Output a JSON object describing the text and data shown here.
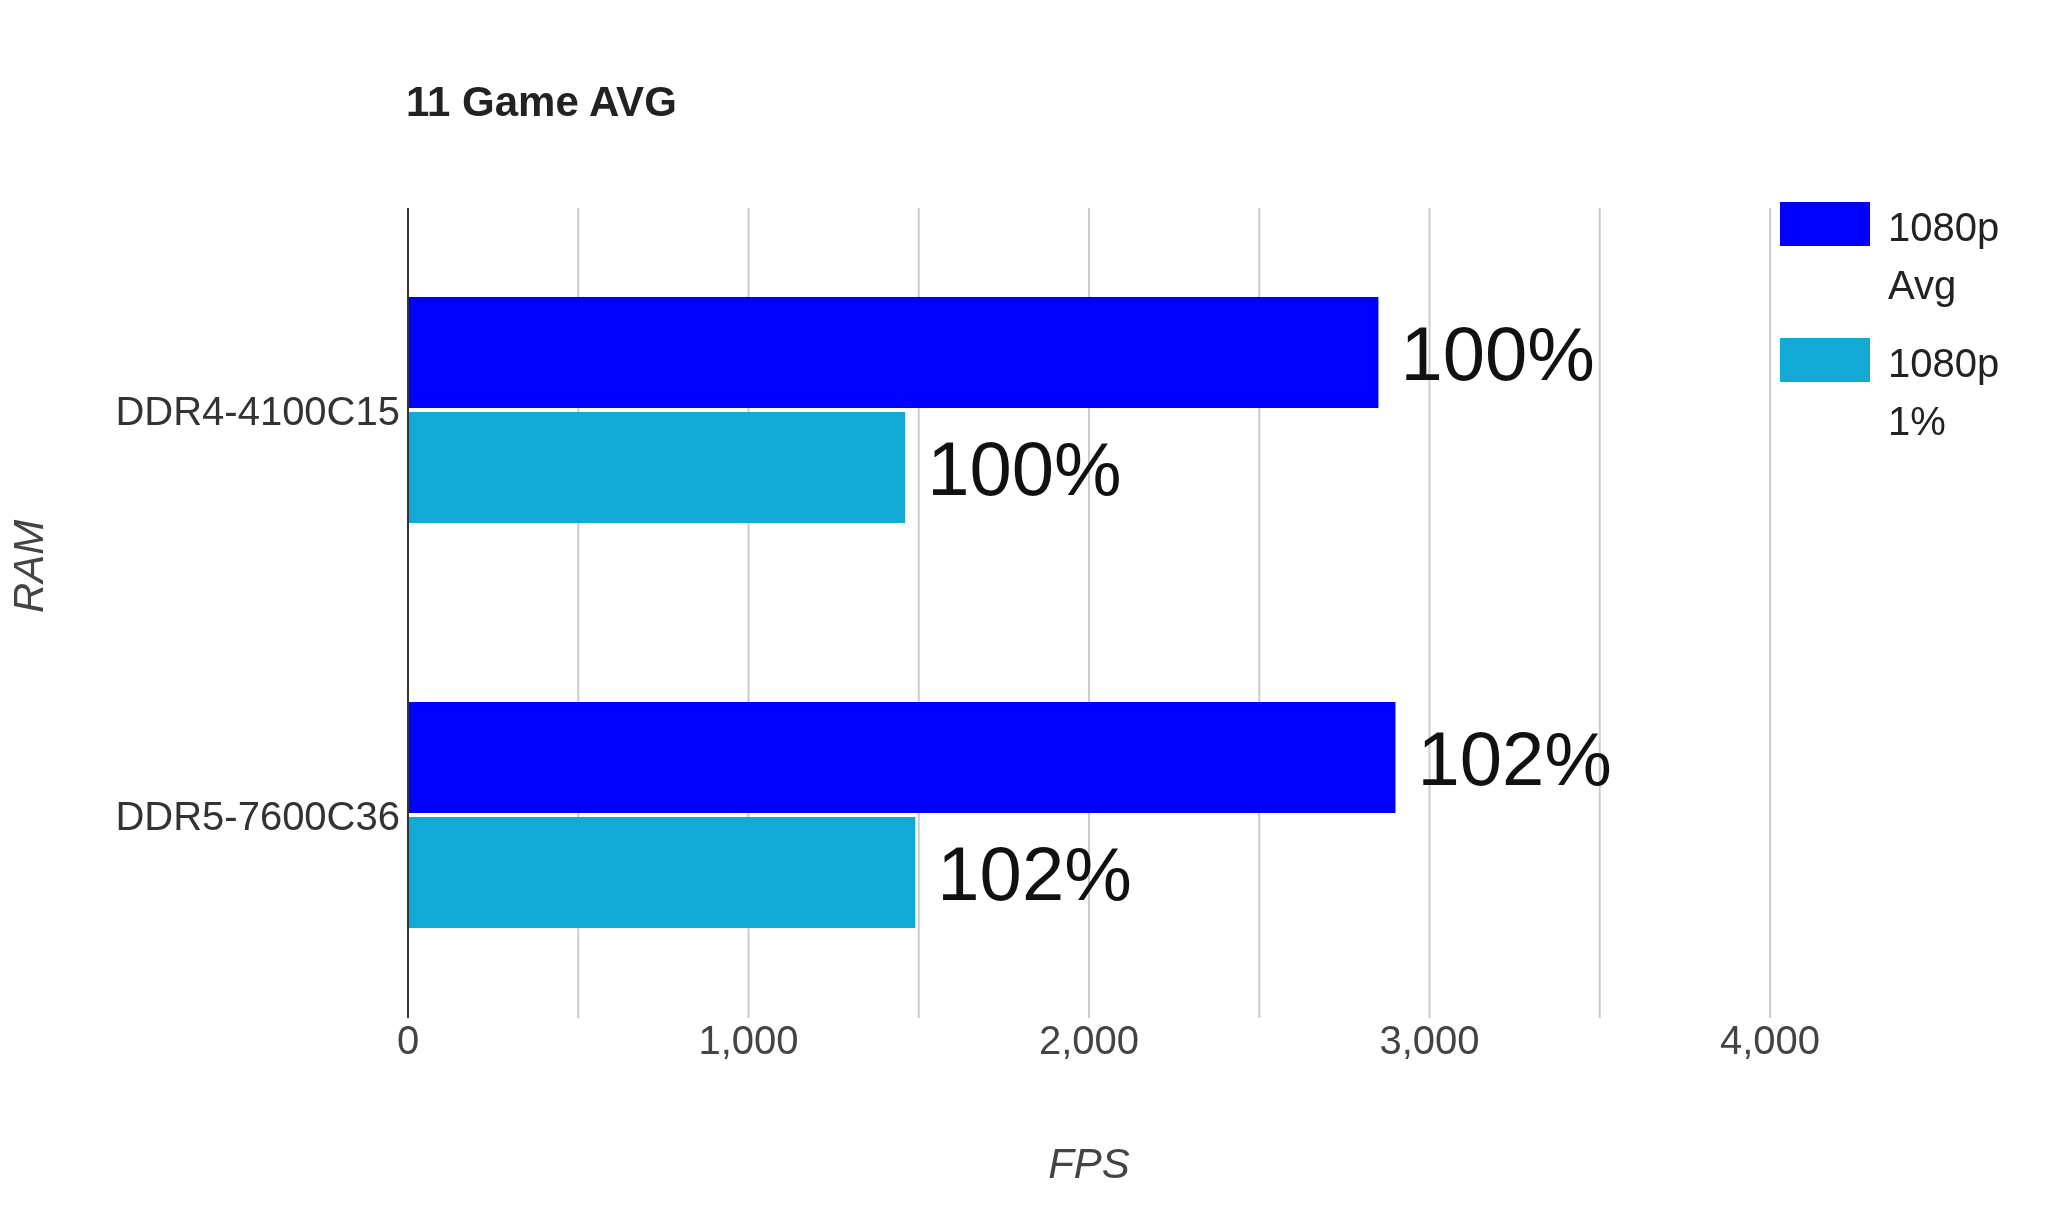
{
  "chart_data": {
    "type": "bar",
    "orientation": "horizontal",
    "title": "11 Game AVG",
    "xlabel": "FPS",
    "ylabel": "RAM",
    "categories": [
      "DDR4-4100C15",
      "DDR5-7600C36"
    ],
    "series": [
      {
        "name": "1080p Avg",
        "color": "#0000ff",
        "values": [
          2850,
          2900
        ]
      },
      {
        "name": "1080p 1%",
        "color": "#12a9d6",
        "values": [
          1460,
          1490
        ]
      }
    ],
    "annotations": [
      {
        "text": "100%",
        "x": 2850,
        "y": "DDR4-4100C15"
      },
      {
        "text": "100%",
        "x": 1460,
        "y": "DDR4-4100C15"
      },
      {
        "text": "102%",
        "x": 2900,
        "y": "DDR5-7600C36"
      },
      {
        "text": "102%",
        "x": 1490,
        "y": "DDR5-7600C36"
      }
    ],
    "xlim": [
      0,
      4000
    ],
    "xticks": [
      0,
      {
        "value": 500,
        "label": null
      },
      {
        "value": 1000,
        "label": "1,000"
      },
      {
        "value": 1500,
        "label": null
      },
      {
        "value": 2000,
        "label": "2,000"
      },
      {
        "value": 2500,
        "label": null
      },
      {
        "value": 3000,
        "label": "3,000"
      },
      {
        "value": 3500,
        "label": null
      },
      {
        "value": 4000,
        "label": "4,000"
      }
    ],
    "grid": "x",
    "legend": "top right"
  }
}
